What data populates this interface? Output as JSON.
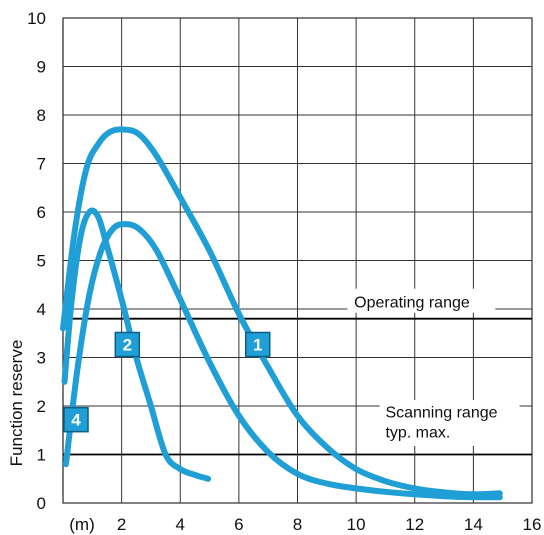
{
  "chart_data": {
    "type": "line",
    "xlabel": "",
    "ylabel": "Function reserve",
    "x_unit_label": "(m)",
    "xlim": [
      0,
      16
    ],
    "ylim": [
      0,
      10
    ],
    "x_ticks": [
      2,
      4,
      6,
      8,
      10,
      12,
      14,
      16
    ],
    "y_ticks": [
      0,
      1,
      2,
      3,
      4,
      5,
      6,
      7,
      8,
      9,
      10
    ],
    "grid": true,
    "line_color": "#1f9fd6",
    "reference_lines": [
      {
        "y": 3.8,
        "label": "Operating range"
      },
      {
        "y": 1.0,
        "label": "Scanning range",
        "label2": "typ. max."
      }
    ],
    "series": [
      {
        "name": "1",
        "points": [
          [
            0.0,
            3.6
          ],
          [
            0.4,
            5.6
          ],
          [
            0.8,
            6.9
          ],
          [
            1.2,
            7.4
          ],
          [
            1.6,
            7.65
          ],
          [
            2.1,
            7.7
          ],
          [
            2.6,
            7.6
          ],
          [
            3.2,
            7.15
          ],
          [
            4.0,
            6.3
          ],
          [
            5.0,
            5.2
          ],
          [
            6.0,
            3.9
          ],
          [
            7.0,
            2.8
          ],
          [
            8.0,
            1.8
          ],
          [
            9.0,
            1.15
          ],
          [
            10.0,
            0.7
          ],
          [
            11.0,
            0.45
          ],
          [
            12.0,
            0.3
          ],
          [
            13.0,
            0.22
          ],
          [
            14.0,
            0.18
          ],
          [
            14.9,
            0.2
          ]
        ]
      },
      {
        "name": "2",
        "points": [
          [
            0.1,
            0.8
          ],
          [
            0.5,
            2.8
          ],
          [
            0.9,
            4.3
          ],
          [
            1.3,
            5.2
          ],
          [
            1.7,
            5.65
          ],
          [
            2.1,
            5.75
          ],
          [
            2.6,
            5.65
          ],
          [
            3.2,
            5.2
          ],
          [
            4.0,
            4.2
          ],
          [
            5.0,
            2.9
          ],
          [
            6.0,
            1.8
          ],
          [
            7.0,
            1.05
          ],
          [
            8.0,
            0.6
          ],
          [
            9.0,
            0.4
          ],
          [
            10.0,
            0.3
          ],
          [
            11.0,
            0.23
          ],
          [
            12.0,
            0.18
          ],
          [
            13.0,
            0.14
          ],
          [
            14.0,
            0.12
          ],
          [
            14.9,
            0.12
          ]
        ]
      },
      {
        "name": "4",
        "points": [
          [
            0.05,
            2.5
          ],
          [
            0.3,
            4.2
          ],
          [
            0.6,
            5.5
          ],
          [
            0.9,
            6.0
          ],
          [
            1.2,
            5.9
          ],
          [
            1.5,
            5.3
          ],
          [
            2.0,
            4.2
          ],
          [
            2.5,
            3.0
          ],
          [
            3.0,
            2.0
          ],
          [
            3.5,
            1.0
          ],
          [
            4.0,
            0.7
          ],
          [
            4.5,
            0.58
          ],
          [
            4.95,
            0.5
          ]
        ]
      }
    ],
    "labels": [
      {
        "text": "1",
        "x": 6.2,
        "y": 3.0
      },
      {
        "text": "2",
        "x": 1.75,
        "y": 3.0
      },
      {
        "text": "4",
        "x": 0.0,
        "y": 1.45
      }
    ]
  }
}
